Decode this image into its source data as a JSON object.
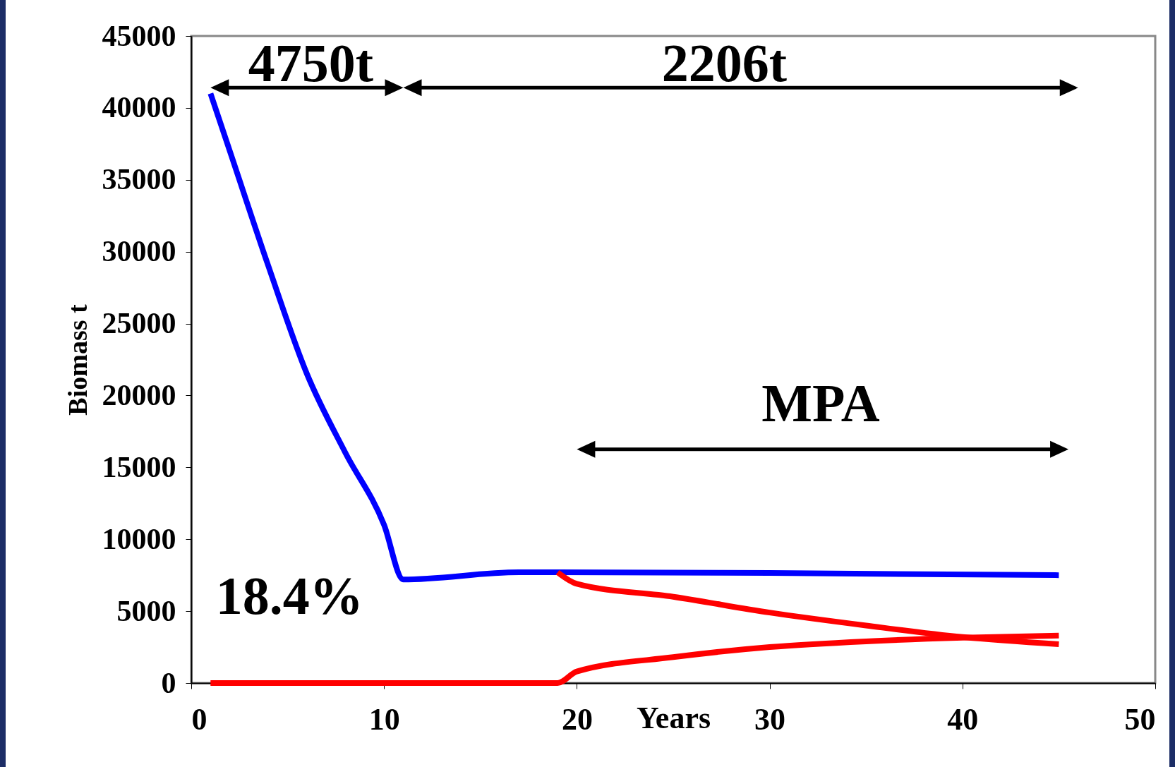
{
  "chart_data": {
    "type": "line",
    "xlabel": "Years",
    "ylabel": "Biomass t",
    "xlim": [
      0,
      50
    ],
    "xticks": [
      0,
      10,
      20,
      30,
      40,
      50
    ],
    "ylim": [
      0,
      45000
    ],
    "yticks": [
      0,
      5000,
      10000,
      15000,
      20000,
      25000,
      30000,
      35000,
      40000,
      45000
    ],
    "grid": false,
    "marker": "none",
    "line_style": "solid",
    "series": [
      {
        "color": "#0000ff",
        "x": [
          1,
          2,
          4,
          6,
          8,
          10,
          11,
          17,
          19,
          30,
          45
        ],
        "values": [
          41000,
          37000,
          29000,
          21500,
          16000,
          11000,
          7200,
          7700,
          7700,
          7650,
          7500
        ]
      },
      {
        "color": "#ff0000",
        "x": [
          19,
          20,
          25,
          30,
          35,
          40,
          45
        ],
        "values": [
          7700,
          6900,
          6000,
          4900,
          4000,
          3200,
          2700
        ]
      },
      {
        "color": "#ff0000",
        "x": [
          1,
          19,
          20,
          25,
          30,
          35,
          40,
          45
        ],
        "values": [
          0,
          0,
          800,
          1800,
          2500,
          2900,
          3150,
          3300
        ]
      }
    ],
    "annotations": [
      "4750t",
      "2206t",
      "MPA",
      "18.4%"
    ]
  }
}
